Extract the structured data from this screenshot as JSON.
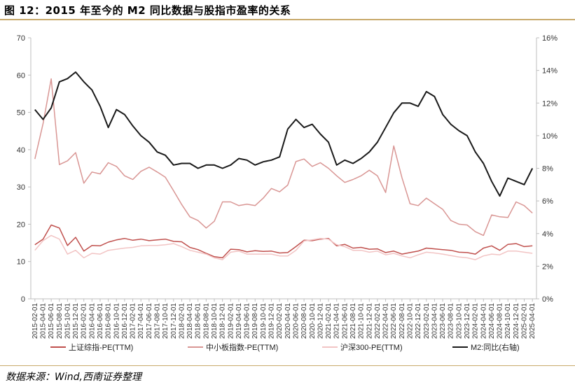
{
  "figure": {
    "title": "图 12：2015 年至今的 M2 同比数据与股指市盈率的关系",
    "source": "数据来源：Wind,西南证券整理"
  },
  "colors": {
    "sh_pe": "#c0504d",
    "sme_pe": "#d99694",
    "hs300_pe": "#f2c4c4",
    "m2": "#1a1a1a",
    "axis": "#bfbfbf",
    "rule": "#c8a96b"
  },
  "chart_data": {
    "type": "line",
    "x": [
      "2015-02-01",
      "2015-04-01",
      "2015-06-01",
      "2015-08-01",
      "2015-10-01",
      "2015-12-01",
      "2016-02-01",
      "2016-04-01",
      "2016-06-01",
      "2016-08-01",
      "2016-10-01",
      "2016-12-01",
      "2017-02-01",
      "2017-04-01",
      "2017-06-01",
      "2017-08-01",
      "2017-10-01",
      "2017-12-01",
      "2018-02-01",
      "2018-04-01",
      "2018-06-01",
      "2018-08-01",
      "2018-10-01",
      "2018-12-01",
      "2019-02-01",
      "2019-04-01",
      "2019-06-01",
      "2019-08-01",
      "2019-10-01",
      "2019-12-01",
      "2020-02-01",
      "2020-04-01",
      "2020-06-01",
      "2020-08-01",
      "2020-10-01",
      "2020-12-01",
      "2021-02-01",
      "2021-04-01",
      "2021-06-01",
      "2021-08-01",
      "2021-10-01",
      "2021-12-01",
      "2022-02-01",
      "2022-04-01",
      "2022-06-01",
      "2022-08-01",
      "2022-10-01",
      "2022-12-01",
      "2023-02-01",
      "2023-04-01",
      "2023-06-01",
      "2023-08-01",
      "2023-10-01",
      "2023-12-01",
      "2024-02-01",
      "2024-04-01",
      "2024-06-01",
      "2024-08-01",
      "2024-10-01",
      "2024-12-01",
      "2025-02-01",
      "2025-04-01"
    ],
    "y_left": {
      "min": 0,
      "max": 70,
      "step": 10
    },
    "y_right": {
      "min": 0,
      "max": 16,
      "step": 2,
      "unit": "%"
    },
    "series": [
      {
        "name": "上证综指-PE(TTM)",
        "axis": "left",
        "color_key": "sh_pe",
        "values": [
          14.5,
          16.0,
          19.8,
          19.0,
          14.3,
          16.5,
          12.8,
          14.3,
          14.2,
          15.2,
          15.8,
          16.2,
          15.7,
          16.0,
          15.6,
          15.8,
          16.0,
          15.4,
          15.3,
          13.8,
          13.2,
          12.2,
          11.3,
          11.0,
          13.3,
          13.2,
          12.6,
          12.9,
          12.7,
          12.8,
          12.3,
          12.4,
          14.0,
          15.7,
          15.6,
          16.0,
          16.2,
          14.2,
          14.6,
          13.6,
          13.8,
          13.3,
          13.4,
          12.4,
          12.8,
          12.0,
          12.4,
          12.8,
          13.6,
          13.4,
          13.2,
          13.0,
          12.5,
          12.4,
          12.0,
          13.6,
          14.2,
          13.0,
          14.6,
          14.8,
          14.0,
          14.2
        ]
      },
      {
        "name": "中小板指数-PE(TTM)",
        "axis": "left",
        "color_key": "sme_pe",
        "values": [
          37.5,
          47.0,
          59.0,
          36.0,
          37.0,
          39.2,
          31.0,
          34.0,
          33.5,
          36.5,
          35.5,
          33.0,
          32.0,
          34.2,
          35.3,
          34.0,
          32.6,
          29.0,
          25.3,
          22.0,
          21.0,
          19.0,
          20.8,
          26.0,
          26.0,
          25.0,
          25.4,
          25.0,
          27.0,
          29.6,
          28.7,
          30.5,
          36.8,
          37.5,
          35.5,
          36.5,
          35.0,
          33.0,
          31.2,
          32.0,
          33.0,
          34.5,
          33.0,
          28.5,
          41.0,
          32.5,
          25.5,
          25.0,
          27.0,
          25.5,
          24.0,
          21.0,
          20.0,
          19.8,
          18.0,
          17.0,
          22.5,
          22.0,
          21.8,
          26.0,
          25.0,
          23.0
        ]
      },
      {
        "name": "沪深300-PE(TTM)",
        "axis": "left",
        "color_key": "hs300_pe",
        "values": [
          13.0,
          15.6,
          17.0,
          16.0,
          12.0,
          13.0,
          11.0,
          12.2,
          12.0,
          13.0,
          13.3,
          13.6,
          13.8,
          14.2,
          14.3,
          14.3,
          14.5,
          14.8,
          14.0,
          13.0,
          12.5,
          12.0,
          11.0,
          10.5,
          12.5,
          12.8,
          12.0,
          12.0,
          12.0,
          12.0,
          11.5,
          11.5,
          13.0,
          15.5,
          15.8,
          16.2,
          16.0,
          14.5,
          14.0,
          13.0,
          13.0,
          12.5,
          12.8,
          11.8,
          12.2,
          11.5,
          11.0,
          11.8,
          12.5,
          12.3,
          12.0,
          11.6,
          11.2,
          11.0,
          10.5,
          11.5,
          12.0,
          11.8,
          12.8,
          12.8,
          12.5,
          12.2
        ]
      },
      {
        "name": "M2:同比(右轴)",
        "axis": "right",
        "color_key": "m2",
        "values": [
          11.6,
          11.0,
          11.7,
          13.3,
          13.5,
          13.9,
          13.3,
          12.8,
          11.8,
          10.5,
          11.6,
          11.3,
          10.6,
          10.0,
          9.6,
          9.0,
          8.8,
          8.2,
          8.3,
          8.3,
          8.0,
          8.2,
          8.2,
          8.0,
          8.2,
          8.6,
          8.5,
          8.2,
          8.4,
          8.5,
          8.7,
          10.4,
          11.0,
          10.5,
          10.7,
          10.1,
          9.6,
          8.2,
          8.5,
          8.3,
          8.6,
          9.0,
          9.6,
          10.5,
          11.4,
          12.0,
          12.0,
          11.8,
          12.7,
          12.4,
          11.3,
          10.7,
          10.3,
          10.0,
          9.0,
          8.3,
          7.2,
          6.3,
          7.4,
          7.2,
          7.0,
          8.0
        ]
      }
    ]
  }
}
